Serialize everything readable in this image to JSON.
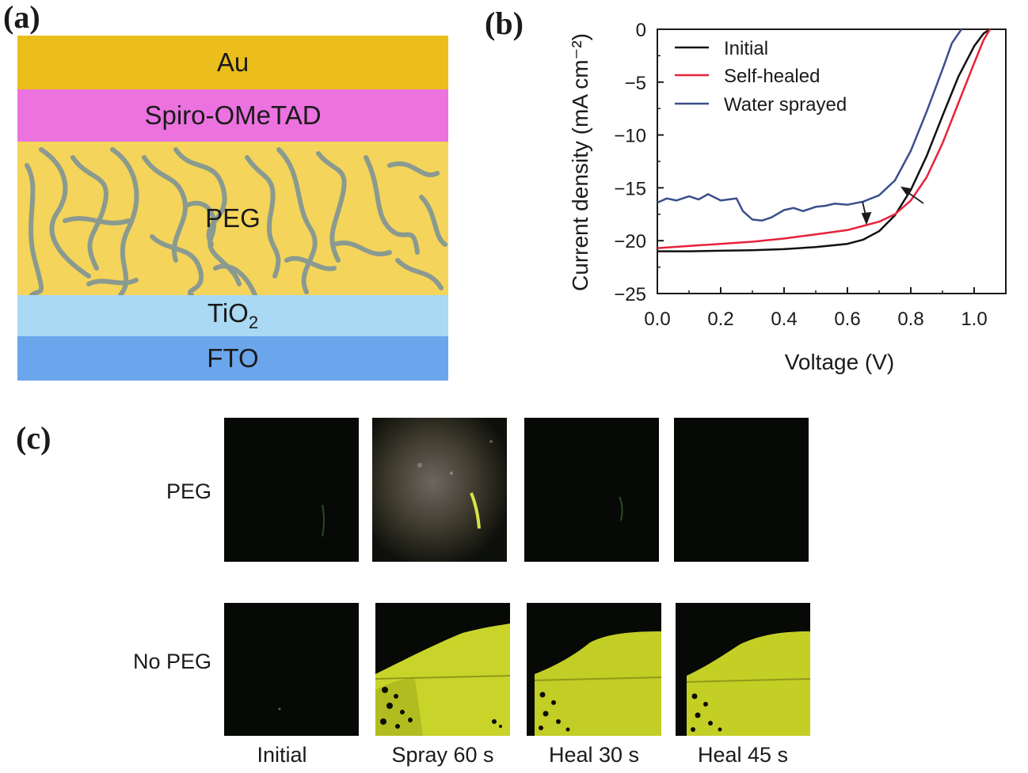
{
  "panels": {
    "a": "(a)",
    "b": "(b)",
    "c": "(c)"
  },
  "stack": {
    "layers": {
      "au": "Au",
      "spiro": "Spiro-OMeTAD",
      "peg": "PEG",
      "tio2_base": "TiO",
      "tio2_sub": "2",
      "fto": "FTO"
    },
    "colors": {
      "au": "#ecbe1c",
      "spiro": "#ec72e0",
      "peg": "#f4d45a",
      "tio2": "#a9d9f3",
      "fto": "#6ba6ec",
      "chain": "#8a9a90"
    }
  },
  "chart_data": {
    "type": "line",
    "title": "",
    "xlabel": "Voltage (V)",
    "ylabel": "Current density (mA cm⁻²)",
    "xlim": [
      0.0,
      1.1
    ],
    "ylim": [
      -25,
      0
    ],
    "xticks": [
      "0.0",
      "0.2",
      "0.4",
      "0.6",
      "0.8",
      "1.0"
    ],
    "yticks": [
      "0",
      "−5",
      "−10",
      "−15",
      "−20",
      "−25"
    ],
    "legend_position": "top-left",
    "series": [
      {
        "name": "Initial",
        "color": "#111111",
        "x": [
          0.0,
          0.1,
          0.2,
          0.3,
          0.4,
          0.5,
          0.6,
          0.65,
          0.7,
          0.75,
          0.8,
          0.85,
          0.9,
          0.95,
          1.0,
          1.03,
          1.05
        ],
        "y": [
          -21.0,
          -21.0,
          -20.95,
          -20.9,
          -20.8,
          -20.6,
          -20.3,
          -19.9,
          -19.1,
          -17.6,
          -15.2,
          -12.0,
          -8.2,
          -4.5,
          -1.6,
          -0.4,
          0.0
        ]
      },
      {
        "name": "Self-healed",
        "color": "#e8213b",
        "x": [
          0.0,
          0.1,
          0.2,
          0.3,
          0.4,
          0.5,
          0.6,
          0.65,
          0.7,
          0.75,
          0.8,
          0.85,
          0.9,
          0.95,
          1.0,
          1.03,
          1.05
        ],
        "y": [
          -20.7,
          -20.5,
          -20.3,
          -20.1,
          -19.8,
          -19.4,
          -19.0,
          -18.6,
          -18.2,
          -17.5,
          -16.2,
          -14.0,
          -10.8,
          -7.0,
          -3.2,
          -1.0,
          0.0
        ]
      },
      {
        "name": "Water sprayed",
        "color": "#3b4f8c",
        "x": [
          0.0,
          0.03,
          0.06,
          0.1,
          0.13,
          0.16,
          0.2,
          0.25,
          0.27,
          0.3,
          0.33,
          0.36,
          0.4,
          0.43,
          0.46,
          0.5,
          0.53,
          0.56,
          0.6,
          0.65,
          0.7,
          0.75,
          0.8,
          0.85,
          0.9,
          0.93,
          0.96
        ],
        "y": [
          -16.4,
          -16.0,
          -16.2,
          -15.8,
          -16.1,
          -15.6,
          -16.2,
          -16.0,
          -17.2,
          -18.0,
          -18.1,
          -17.8,
          -17.1,
          -16.9,
          -17.2,
          -16.8,
          -16.7,
          -16.5,
          -16.6,
          -16.3,
          -15.7,
          -14.3,
          -11.5,
          -7.8,
          -3.8,
          -1.3,
          0.0
        ]
      }
    ]
  },
  "grid": {
    "rows": [
      "PEG",
      "No PEG"
    ],
    "columns": [
      "Initial",
      "Spray 60 s",
      "Heal 30 s",
      "Heal 45 s"
    ]
  }
}
